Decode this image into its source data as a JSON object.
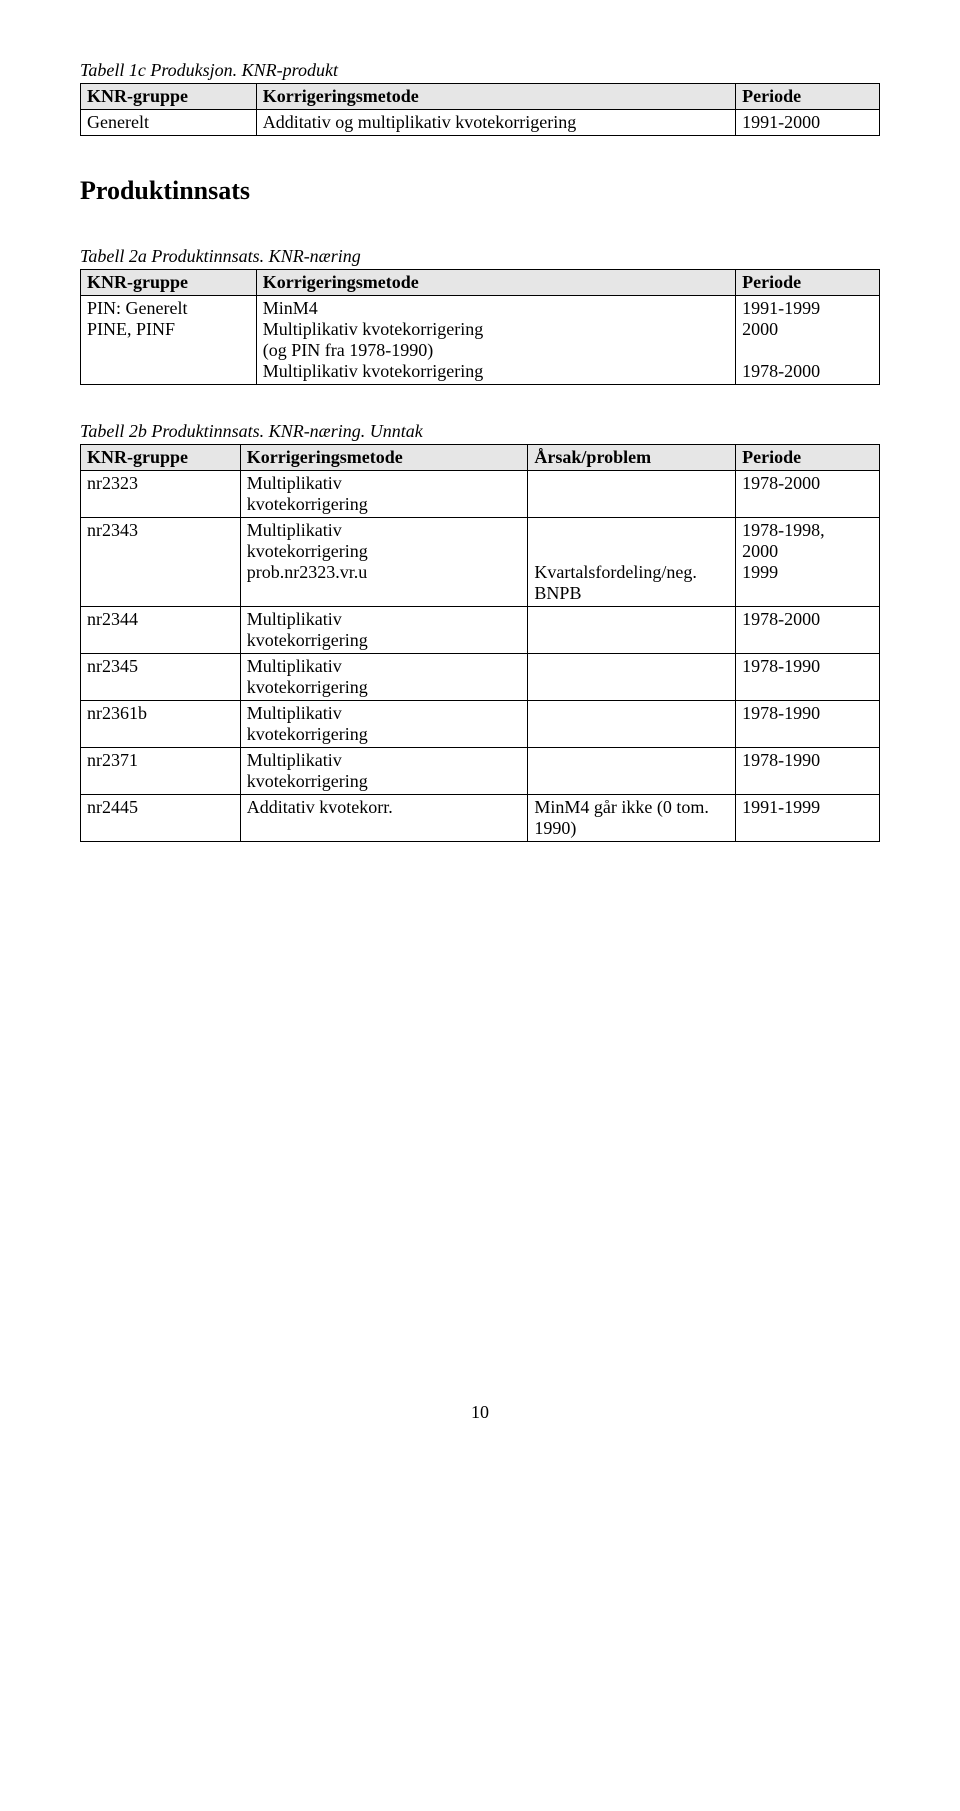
{
  "table1c": {
    "caption": "Tabell 1c Produksjon. KNR-produkt",
    "headers": [
      "KNR-gruppe",
      "Korrigeringsmetode",
      "Periode"
    ],
    "rows": [
      [
        "Generelt",
        "Additativ og multiplikativ kvotekorrigering",
        "1991-2000"
      ]
    ]
  },
  "sectionHeading": "Produktinnsats",
  "table2a": {
    "caption": "Tabell 2a Produktinnsats. KNR-næring",
    "headers": [
      "KNR-gruppe",
      "Korrigeringsmetode",
      "Periode"
    ],
    "rows": [
      {
        "group": "PIN: Generelt\nPINE, PINF",
        "method": "MinM4\nMultiplikativ kvotekorrigering\n(og PIN fra 1978-1990)\nMultiplikativ kvotekorrigering",
        "period": "1991-1999\n2000\n\n1978-2000"
      }
    ]
  },
  "table2b": {
    "caption": "Tabell 2b Produktinnsats. KNR-næring. Unntak",
    "headers": [
      "KNR-gruppe",
      "Korrigeringsmetode",
      "Årsak/problem",
      "Periode"
    ],
    "rows": [
      [
        "nr2323",
        "Multiplikativ\nkvotekorrigering",
        "",
        "1978-2000"
      ],
      [
        "nr2343",
        "Multiplikativ\nkvotekorrigering\nprob.nr2323.vr.u",
        "\n\nKvartalsfordeling/neg.\nBNPB",
        "1978-1998,\n2000\n1999"
      ],
      [
        "nr2344",
        "Multiplikativ\nkvotekorrigering",
        "",
        "1978-2000"
      ],
      [
        "nr2345",
        "Multiplikativ\nkvotekorrigering",
        "",
        "1978-1990"
      ],
      [
        "nr2361b",
        "Multiplikativ\nkvotekorrigering",
        "",
        "1978-1990"
      ],
      [
        "nr2371",
        "Multiplikativ\nkvotekorrigering",
        "",
        "1978-1990"
      ],
      [
        "nr2445",
        "Additativ kvotekorr.",
        "MinM4 går ikke (0 tom.\n1990)",
        "1991-1999"
      ]
    ]
  },
  "pageNumber": "10"
}
